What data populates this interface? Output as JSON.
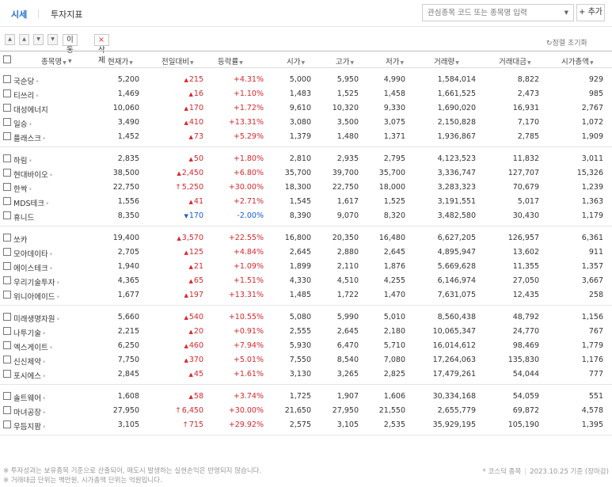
{
  "tabs": [
    "시세",
    "투자지표"
  ],
  "search": {
    "placeholder": "관심종목 코드 또는 종목명 입력",
    "add_label": "+ 추가"
  },
  "toolbar": {
    "move_label": "이동",
    "delete_label": "삭제",
    "reset_label": "정렬 초기화"
  },
  "columns": [
    "종목명",
    "현재가",
    "전일대비",
    "등락률",
    "시가",
    "고가",
    "저가",
    "거래량",
    "거래대금",
    "시가총액"
  ],
  "groups": [
    [
      {
        "name": "국순당",
        "star": true,
        "price": "5,200",
        "change": "215",
        "dir": "up",
        "rate": "+4.31%",
        "open": "5,000",
        "high": "5,950",
        "low": "4,990",
        "volume": "1,584,014",
        "amount": "8,822",
        "cap": "929"
      },
      {
        "name": "티쓰리",
        "star": true,
        "price": "1,469",
        "change": "16",
        "dir": "up",
        "rate": "+1.10%",
        "open": "1,483",
        "high": "1,525",
        "low": "1,458",
        "volume": "1,661,525",
        "amount": "2,473",
        "cap": "985"
      },
      {
        "name": "대성에너지",
        "star": false,
        "price": "10,060",
        "change": "170",
        "dir": "up",
        "rate": "+1.72%",
        "open": "9,610",
        "high": "10,320",
        "low": "9,330",
        "volume": "1,690,020",
        "amount": "16,931",
        "cap": "2,767"
      },
      {
        "name": "일승",
        "star": true,
        "price": "3,490",
        "change": "410",
        "dir": "up",
        "rate": "+13.31%",
        "open": "3,080",
        "high": "3,500",
        "low": "3,075",
        "volume": "2,150,828",
        "amount": "7,170",
        "cap": "1,072"
      },
      {
        "name": "플래스크",
        "star": true,
        "price": "1,452",
        "change": "73",
        "dir": "up",
        "rate": "+5.29%",
        "open": "1,379",
        "high": "1,480",
        "low": "1,371",
        "volume": "1,936,867",
        "amount": "2,785",
        "cap": "1,909"
      }
    ],
    [
      {
        "name": "하림",
        "star": true,
        "price": "2,835",
        "change": "50",
        "dir": "up",
        "rate": "+1.80%",
        "open": "2,810",
        "high": "2,935",
        "low": "2,795",
        "volume": "4,123,523",
        "amount": "11,832",
        "cap": "3,011"
      },
      {
        "name": "현대바이오",
        "star": true,
        "price": "38,500",
        "change": "2,450",
        "dir": "up",
        "rate": "+6.80%",
        "open": "35,700",
        "high": "39,700",
        "low": "35,700",
        "volume": "3,336,747",
        "amount": "127,707",
        "cap": "15,326"
      },
      {
        "name": "한싹",
        "star": true,
        "price": "22,750",
        "change": "5,250",
        "dir": "upper",
        "rate": "+30.00%",
        "open": "18,300",
        "high": "22,750",
        "low": "18,000",
        "volume": "3,283,323",
        "amount": "70,679",
        "cap": "1,239"
      },
      {
        "name": "MDS테크",
        "star": true,
        "price": "1,556",
        "change": "41",
        "dir": "up",
        "rate": "+2.71%",
        "open": "1,545",
        "high": "1,617",
        "low": "1,525",
        "volume": "3,191,551",
        "amount": "5,017",
        "cap": "1,363"
      },
      {
        "name": "휴니드",
        "star": false,
        "price": "8,350",
        "change": "170",
        "dir": "down",
        "rate": "-2.00%",
        "open": "8,390",
        "high": "9,070",
        "low": "8,320",
        "volume": "3,482,580",
        "amount": "30,430",
        "cap": "1,179"
      }
    ],
    [
      {
        "name": "쏘카",
        "star": false,
        "price": "19,400",
        "change": "3,570",
        "dir": "up",
        "rate": "+22.55%",
        "open": "16,800",
        "high": "20,350",
        "low": "16,480",
        "volume": "6,627,205",
        "amount": "126,957",
        "cap": "6,361"
      },
      {
        "name": "모아데이타",
        "star": true,
        "price": "2,705",
        "change": "125",
        "dir": "up",
        "rate": "+4.84%",
        "open": "2,645",
        "high": "2,880",
        "low": "2,645",
        "volume": "4,895,947",
        "amount": "13,602",
        "cap": "911"
      },
      {
        "name": "에이스테크",
        "star": true,
        "price": "1,940",
        "change": "21",
        "dir": "up",
        "rate": "+1.09%",
        "open": "1,899",
        "high": "2,110",
        "low": "1,876",
        "volume": "5,669,628",
        "amount": "11,355",
        "cap": "1,357"
      },
      {
        "name": "우리기술투자",
        "star": true,
        "price": "4,365",
        "change": "65",
        "dir": "up",
        "rate": "+1.51%",
        "open": "4,330",
        "high": "4,510",
        "low": "4,255",
        "volume": "6,146,974",
        "amount": "27,050",
        "cap": "3,667"
      },
      {
        "name": "위니아에이드",
        "star": true,
        "price": "1,677",
        "change": "197",
        "dir": "up",
        "rate": "+13.31%",
        "open": "1,485",
        "high": "1,722",
        "low": "1,470",
        "volume": "7,631,075",
        "amount": "12,435",
        "cap": "258"
      }
    ],
    [
      {
        "name": "미래생명자원",
        "star": true,
        "price": "5,660",
        "change": "540",
        "dir": "up",
        "rate": "+10.55%",
        "open": "5,080",
        "high": "5,990",
        "low": "5,010",
        "volume": "8,560,438",
        "amount": "48,792",
        "cap": "1,156"
      },
      {
        "name": "나투기술",
        "star": true,
        "price": "2,215",
        "change": "20",
        "dir": "up",
        "rate": "+0.91%",
        "open": "2,555",
        "high": "2,645",
        "low": "2,180",
        "volume": "10,065,347",
        "amount": "24,770",
        "cap": "767"
      },
      {
        "name": "엑스게이트",
        "star": true,
        "price": "6,250",
        "change": "460",
        "dir": "up",
        "rate": "+7.94%",
        "open": "5,930",
        "high": "6,470",
        "low": "5,710",
        "volume": "16,014,612",
        "amount": "98,469",
        "cap": "1,779"
      },
      {
        "name": "신신제약",
        "star": true,
        "price": "7,750",
        "change": "370",
        "dir": "up",
        "rate": "+5.01%",
        "open": "7,550",
        "high": "8,540",
        "low": "7,080",
        "volume": "17,264,063",
        "amount": "135,830",
        "cap": "1,176"
      },
      {
        "name": "포시에스",
        "star": true,
        "price": "2,845",
        "change": "45",
        "dir": "up",
        "rate": "+1.61%",
        "open": "3,130",
        "high": "3,265",
        "low": "2,825",
        "volume": "17,479,261",
        "amount": "54,044",
        "cap": "777"
      }
    ],
    [
      {
        "name": "솔트웨어",
        "star": true,
        "price": "1,608",
        "change": "58",
        "dir": "up",
        "rate": "+3.74%",
        "open": "1,725",
        "high": "1,907",
        "low": "1,606",
        "volume": "30,334,168",
        "amount": "54,059",
        "cap": "551"
      },
      {
        "name": "마녀공장",
        "star": true,
        "price": "27,950",
        "change": "6,450",
        "dir": "upper",
        "rate": "+30.00%",
        "open": "21,650",
        "high": "27,950",
        "low": "21,550",
        "volume": "2,655,779",
        "amount": "69,872",
        "cap": "4,578"
      },
      {
        "name": "우듬지팜",
        "star": true,
        "price": "3,105",
        "change": "715",
        "dir": "upper",
        "rate": "+29.92%",
        "open": "2,575",
        "high": "3,105",
        "low": "2,535",
        "volume": "35,929,195",
        "amount": "105,190",
        "cap": "1,395"
      }
    ]
  ],
  "footer": {
    "note1": "※ 투자성과는 보유종목 기준으로 산출되어, 매도시 발생하는 실현손익은 반영되지 않습니다.",
    "note2": "※ 거래대금 단위는 백만원, 시가총액 단위는 억원입니다.",
    "legend": "* 코스닥 종목",
    "timestamp": "2023.10.25 기준 (장마감)"
  },
  "colors": {
    "up": "#d9262c",
    "down": "#1a5ad8",
    "accent": "#1a6fd1"
  }
}
